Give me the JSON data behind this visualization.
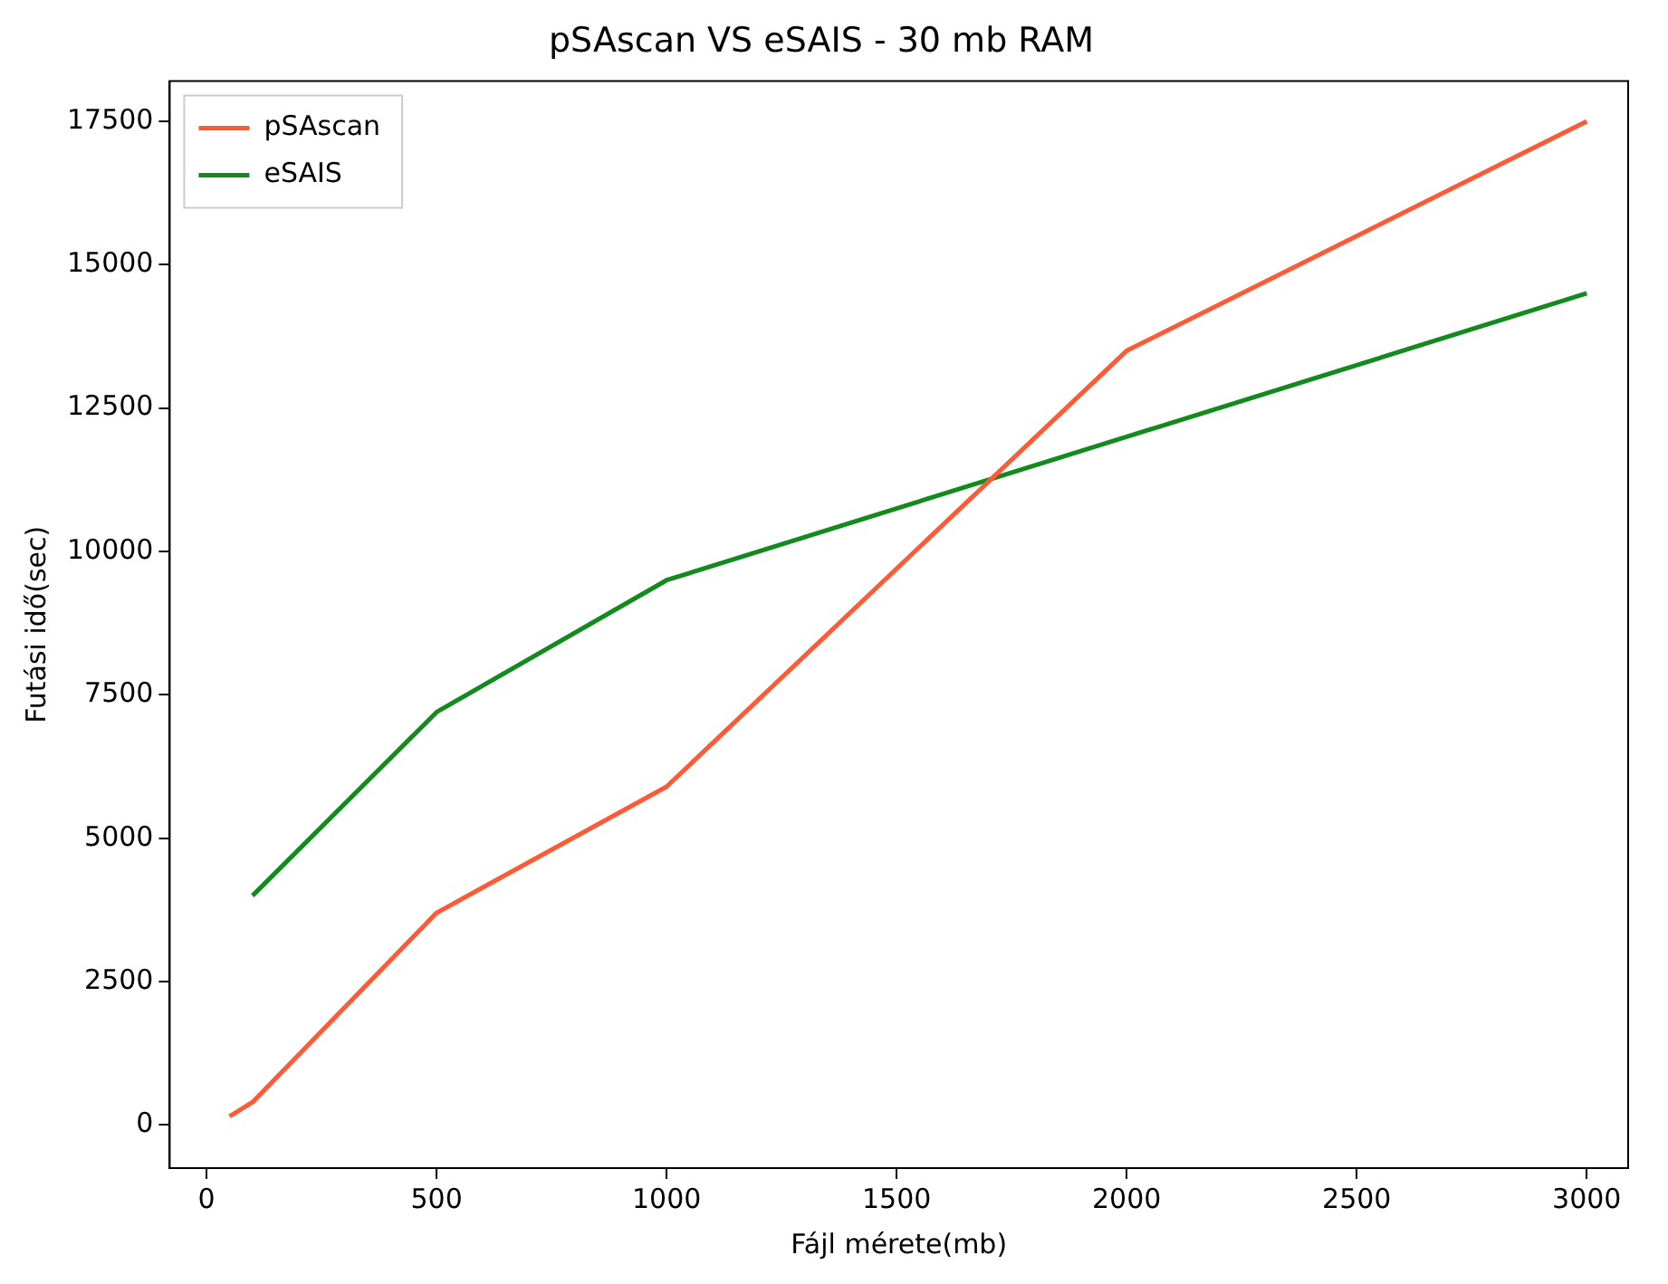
{
  "chart_data": {
    "type": "line",
    "title": "pSAscan VS eSAIS - 30 mb RAM",
    "xlabel": "Fájl mérete(mb)",
    "ylabel": "Futási idő(sec)",
    "xlim": [
      -80,
      3090
    ],
    "ylim": [
      -750,
      18200
    ],
    "xticks": [
      0,
      500,
      1000,
      1500,
      2000,
      2500,
      3000
    ],
    "yticks": [
      0,
      2500,
      5000,
      7500,
      10000,
      12500,
      15000,
      17500
    ],
    "grid": false,
    "legend": "top left",
    "marker": "none",
    "line_style": "solid",
    "series": [
      {
        "name": "pSAscan",
        "color": "#ff5a36",
        "x": [
          50,
          100,
          500,
          1000,
          2000,
          3000
        ],
        "values": [
          150,
          400,
          3700,
          5900,
          13500,
          17500
        ]
      },
      {
        "name": "eSAIS",
        "color": "#138a1e",
        "x": [
          100,
          500,
          1000,
          3000
        ],
        "values": [
          4000,
          7200,
          9500,
          14500
        ]
      }
    ]
  }
}
